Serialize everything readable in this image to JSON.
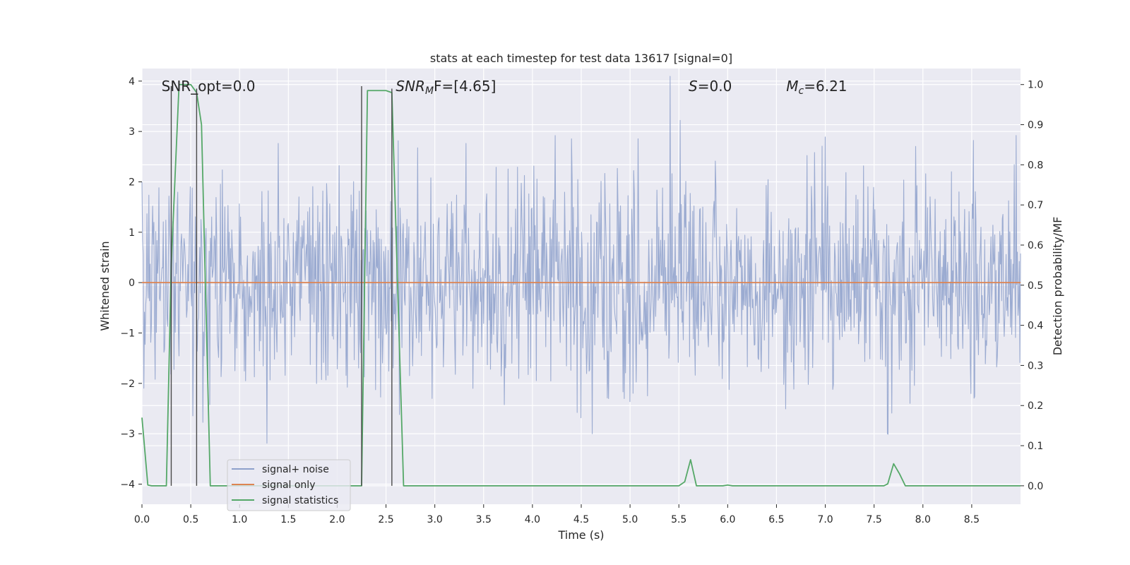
{
  "chart_data": {
    "type": "line",
    "title": "stats at each timestep for test data 13617 [signal=0]",
    "xlabel": "Time (s)",
    "ylabel": "Whitened strain",
    "ylabel_right": "Detection probability/MF",
    "xlim": [
      0,
      9.0
    ],
    "ylim": [
      -4.4,
      4.25
    ],
    "ylim_right": [
      -0.046,
      1.04
    ],
    "x_ticks": [
      0.0,
      0.5,
      1.0,
      1.5,
      2.0,
      2.5,
      3.0,
      3.5,
      4.0,
      4.5,
      5.0,
      5.5,
      6.0,
      6.5,
      7.0,
      7.5,
      8.0,
      8.5
    ],
    "x_tick_labels": [
      "0.0",
      "0.5",
      "1.0",
      "1.5",
      "2.0",
      "2.5",
      "3.0",
      "3.5",
      "4.0",
      "4.5",
      "5.0",
      "5.5",
      "6.0",
      "6.5",
      "7.0",
      "7.5",
      "8.0",
      "8.5"
    ],
    "y_ticks": [
      4,
      3,
      2,
      1,
      0,
      -1,
      -2,
      -3,
      -4
    ],
    "y_tick_labels": [
      "4",
      "3",
      "2",
      "1",
      "0",
      "−1",
      "−2",
      "−3",
      "−4"
    ],
    "y_ticks_right": [
      1.0,
      0.9,
      0.8,
      0.7,
      0.6,
      0.5,
      0.4,
      0.3,
      0.2,
      0.1,
      0.0
    ],
    "y_tick_labels_right": [
      "1.0",
      "0.9",
      "0.8",
      "0.7",
      "0.6",
      "0.5",
      "0.4",
      "0.3",
      "0.2",
      "0.1",
      "0.0"
    ],
    "grid": true,
    "legend_position": "lower-left",
    "annotations": [
      {
        "text": "SNR_opt=0.0",
        "x": 0.2,
        "y": 3.9
      },
      {
        "text": "SNR",
        "sub": "M",
        "rest": "F=[4.65]",
        "italic": true,
        "x": 2.6,
        "y": 3.9
      },
      {
        "text": "S",
        "rest": "=0.0",
        "italic": true,
        "x": 5.6,
        "y": 3.9
      },
      {
        "text": "M",
        "sub": "c",
        "rest": "=6.21",
        "italic": true,
        "x": 6.6,
        "y": 3.9
      }
    ],
    "vertical_markers": [
      {
        "x": 0.3,
        "y_top": 3.9
      },
      {
        "x": 0.56,
        "y_top": 3.85
      },
      {
        "x": 2.25,
        "y_top": 3.9
      },
      {
        "x": 2.56,
        "y_top": 3.85
      }
    ],
    "series": [
      {
        "name": "signal+ noise",
        "color": "#8da0cb",
        "axis": "left",
        "noise": {
          "seed": 13617,
          "n": 1400,
          "sigma": 1.05,
          "x_start": 0.0,
          "x_end": 9.0
        }
      },
      {
        "name": "signal only",
        "color": "#dd8452",
        "axis": "left",
        "x": [
          0.0,
          9.0
        ],
        "y": [
          0.0,
          0.0
        ]
      },
      {
        "name": "signal statistics",
        "color": "#55a868",
        "axis": "right",
        "x": [
          0.0,
          0.06,
          0.1,
          0.25,
          0.3,
          0.38,
          0.5,
          0.56,
          0.61,
          0.7,
          2.25,
          2.31,
          2.5,
          2.56,
          2.68,
          5.5,
          5.56,
          5.62,
          5.68,
          5.95,
          6.0,
          6.05,
          7.6,
          7.64,
          7.7,
          7.76,
          7.82,
          9.0
        ],
        "y": [
          0.17,
          0.002,
          0.0,
          0.0,
          0.55,
          1.0,
          1.0,
          0.98,
          0.9,
          0.0,
          0.0,
          0.985,
          0.985,
          0.98,
          0.0,
          0.0,
          0.01,
          0.065,
          0.0,
          0.0,
          0.002,
          0.0,
          0.0,
          0.005,
          0.055,
          0.03,
          0.0,
          0.0
        ]
      }
    ]
  }
}
